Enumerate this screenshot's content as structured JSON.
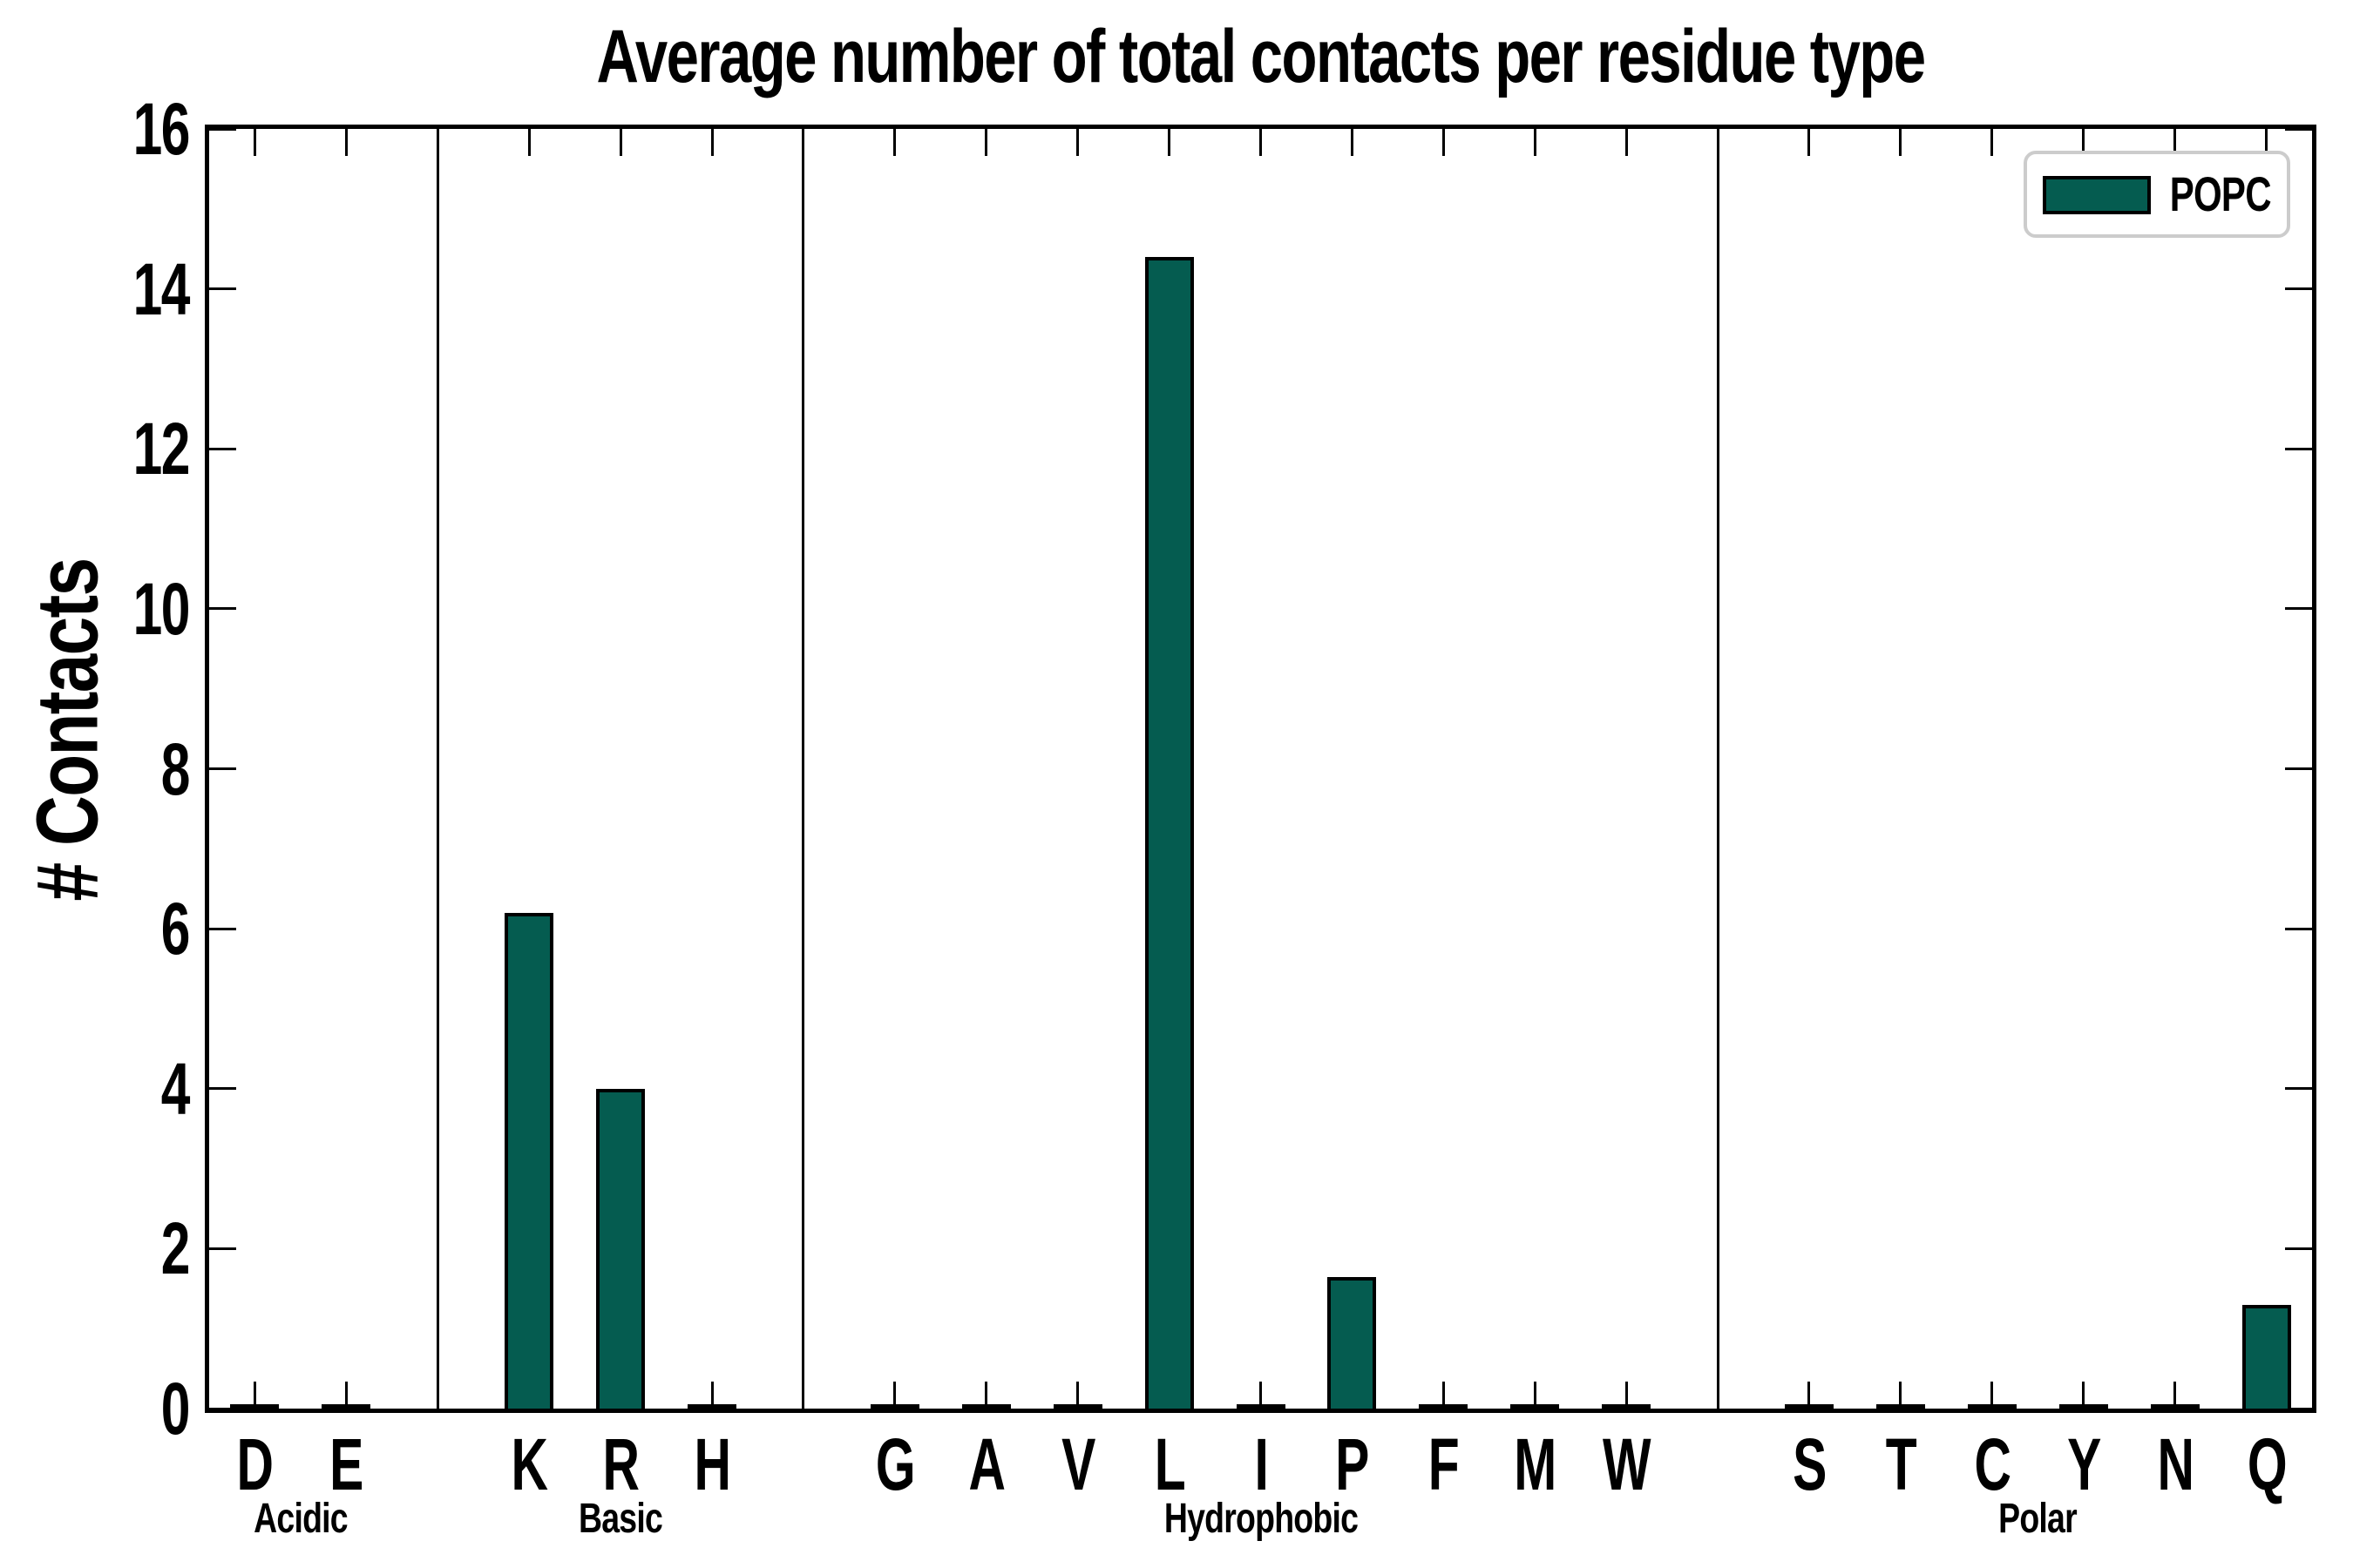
{
  "chart_data": {
    "type": "bar",
    "title": "Average number of total contacts per residue type",
    "ylabel": "# Contacts",
    "xlabel": "",
    "ylim": [
      0,
      16
    ],
    "ytick_step": 2,
    "ytick_labels": [
      "0",
      "2",
      "4",
      "6",
      "8",
      "10",
      "12",
      "14",
      "16"
    ],
    "grid": false,
    "legend": {
      "label": "POPC",
      "position": "upper-right"
    },
    "colors": {
      "bar_fill": "#055c50",
      "bar_edge": "#000000",
      "axis": "#000000",
      "legend_border": "#cccccc",
      "background": "#ffffff"
    },
    "groups": [
      {
        "label": "Acidic",
        "categories": [
          "D",
          "E"
        ],
        "values": [
          0.0,
          0.0
        ]
      },
      {
        "label": "Basic",
        "categories": [
          "K",
          "R",
          "H"
        ],
        "values": [
          6.2,
          4.0,
          0.0
        ]
      },
      {
        "label": "Hydrophobic",
        "categories": [
          "G",
          "A",
          "V",
          "L",
          "I",
          "P",
          "F",
          "M",
          "W"
        ],
        "values": [
          0.0,
          0.0,
          0.0,
          14.4,
          0.0,
          1.65,
          0.0,
          0.0,
          0.0
        ]
      },
      {
        "label": "Polar",
        "categories": [
          "S",
          "T",
          "C",
          "Y",
          "N",
          "Q"
        ],
        "values": [
          0.0,
          0.0,
          0.0,
          0.0,
          0.0,
          1.3
        ]
      }
    ]
  }
}
